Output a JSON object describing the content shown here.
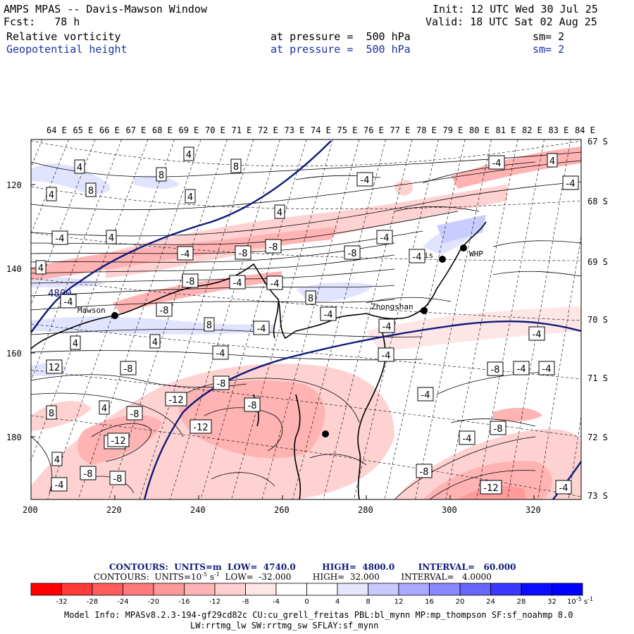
{
  "header": {
    "title": "AMPS MPAS -- Davis-Mawson Window",
    "init": "Init: 12 UTC Wed 30 Jul 25",
    "fcst": "Fcst:   78 h",
    "valid": "Valid: 18 UTC Sat 02 Aug 25",
    "field1": "Relative vorticity",
    "field1_level": "at pressure =  500 hPa",
    "field1_sm": "sm= 2",
    "field2": "Geopotential height",
    "field2_level": "at pressure =  500 hPa",
    "field2_sm": "sm= 2"
  },
  "map": {
    "lon_labels": [
      "64 E",
      "65 E",
      "66 E",
      "67 E",
      "68 E",
      "69 E",
      "70 E",
      "71 E",
      "72 E",
      "73 E",
      "74 E",
      "75 E",
      "76 E",
      "77 E",
      "78 E",
      "79 E",
      "80 E",
      "81 E",
      "82 E",
      "83 E",
      "84 E"
    ],
    "lat_labels": [
      "67 S",
      "68 S",
      "69 S",
      "70 S",
      "71 S",
      "72 S",
      "73 S"
    ],
    "x_ticks": [
      "200",
      "220",
      "240",
      "260",
      "280",
      "300",
      "320"
    ],
    "y_ticks": [
      "120",
      "140",
      "160",
      "180"
    ],
    "stations": [
      {
        "name": "Mawson"
      },
      {
        "name": "Davis"
      },
      {
        "name": "Zhongshan"
      },
      {
        "name": "WHP"
      }
    ],
    "height_contour_label": "4800",
    "vorticity_labels": [
      "4",
      "8",
      "8",
      "4",
      "8",
      "4",
      "4",
      "-4",
      "-4",
      "4",
      "4",
      "-4",
      "-8",
      "-8",
      "-4",
      "-4",
      "-8",
      "-4",
      "-4",
      "-8",
      "-4",
      "-4",
      "4",
      "-4",
      "8",
      "4",
      "8",
      "-4",
      "-4",
      "-8",
      "4",
      "-4",
      "-8",
      "-8",
      "-4",
      "-4",
      "-4",
      "-4",
      "-12",
      "-12",
      "-8",
      "-12",
      "-8",
      "4",
      "-8",
      "-8",
      "-4",
      "4",
      "-4",
      "-8",
      "-12",
      "-8",
      "-12",
      "-4",
      "-8",
      "12",
      "8",
      "-4",
      "4",
      "-4"
    ]
  },
  "legend": {
    "contours1": "CONTOURS:  UNITS=m  LOW=  4740.0         HIGH=  4800.0        INTERVAL=   60.000",
    "contours2_a": "CONTOURS:  UNITS=10",
    "contours2_exp": "-5",
    "contours2_b": " s",
    "contours2_exp2": "-1",
    "contours2_c": "  LOW=  -32.000        HIGH=  32.000        INTERVAL=   4.0000",
    "colorbar_labels": [
      "-32",
      "-28",
      "-24",
      "-20",
      "-16",
      "-12",
      "-8",
      "-4",
      "0",
      "4",
      "8",
      "12",
      "16",
      "20",
      "24",
      "28",
      "32"
    ],
    "colorbar_units": "10",
    "colorbar_units_exp": "-5",
    "colorbar_units_tail": " s",
    "colorbar_units_exp2": "-1",
    "colorbar_colors": [
      "#ff0000",
      "#ff3a3a",
      "#ff5c5c",
      "#ff7b7b",
      "#ff9999",
      "#ffb5b5",
      "#ffcfcf",
      "#ffe6e6",
      "#ffffff",
      "#ffffff",
      "#e6e6ff",
      "#c9c9ff",
      "#a9a9ff",
      "#8888ff",
      "#6666ff",
      "#3a3aff",
      "#0c0cff",
      "#0000ff"
    ]
  },
  "model_info": {
    "line1": "Model Info: MPASv8.2.3-194-gf29cd82c CU:cu_grell_freitas PBL:bl_mynn MP:mp_thompson SF:sf_noahmp 8.0",
    "line2": "LW:rrtmg_lw SW:rrtmg_sw SFLAY:sf_mynn"
  }
}
